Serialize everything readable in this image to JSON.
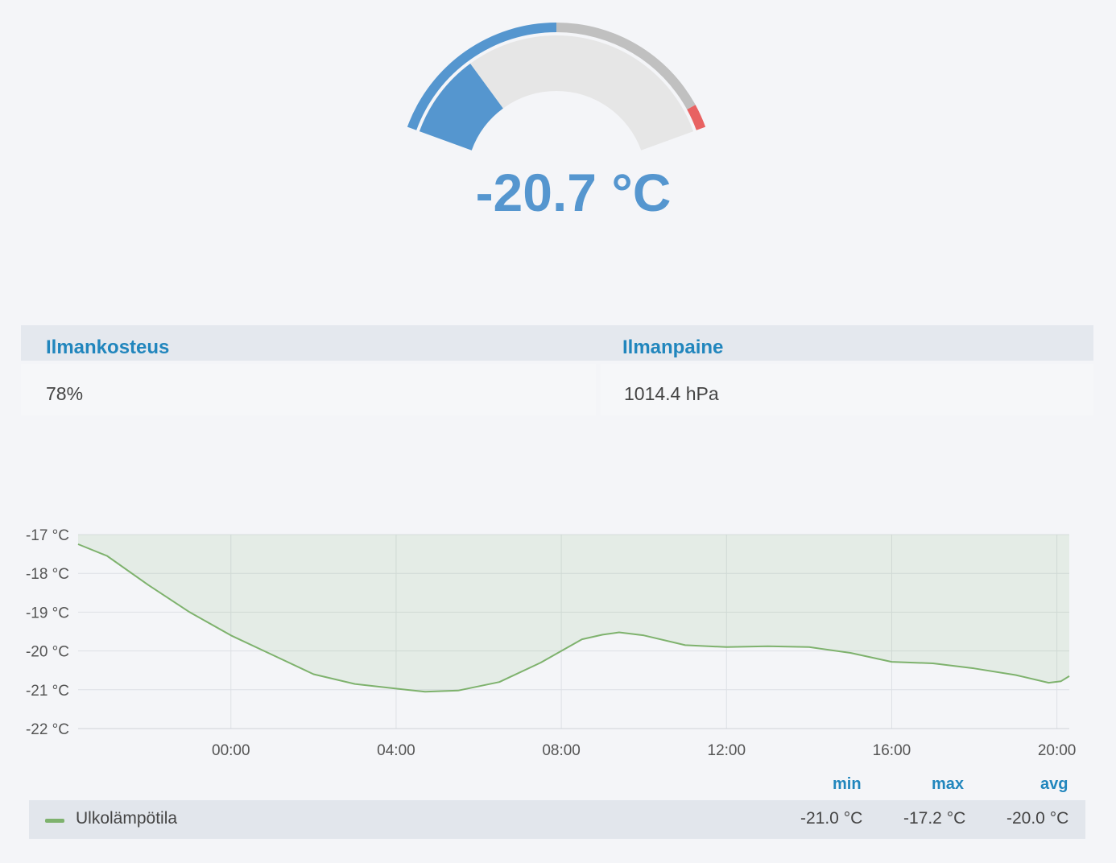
{
  "gauge": {
    "value_text": "-20.7 °C",
    "value": -20.7,
    "min": -40,
    "max": 40,
    "thresholds": [
      {
        "to": 0,
        "color": "#5596cf"
      },
      {
        "to": 35,
        "color": "#c0c0c0"
      },
      {
        "to": 40,
        "color": "#e86262"
      }
    ],
    "value_color": "#5596cf",
    "track_color": "#e6e6e6"
  },
  "stats": {
    "humidity": {
      "label": "Ilmankosteus",
      "value": "78%"
    },
    "pressure": {
      "label": "Ilmanpaine",
      "value": "1014.4 hPa"
    }
  },
  "chart_data": {
    "type": "area",
    "x_ticks": [
      "00:00",
      "04:00",
      "08:00",
      "12:00",
      "16:00",
      "20:00"
    ],
    "y_ticks": [
      "-17 °C",
      "-18 °C",
      "-19 °C",
      "-20 °C",
      "-21 °C",
      "-22 °C"
    ],
    "ylim": [
      -22,
      -17
    ],
    "x_unit": "hours since 00:00",
    "xlim": [
      -3.7,
      20.3
    ],
    "grid": true,
    "series": [
      {
        "name": "Ulkolämpötila",
        "color": "#7eb26d",
        "x": [
          -3.7,
          -3.0,
          -2.0,
          -1.0,
          0.0,
          1.0,
          2.0,
          3.0,
          4.0,
          4.7,
          5.5,
          6.5,
          7.5,
          8.0,
          8.5,
          9.0,
          9.4,
          10.0,
          11.0,
          12.0,
          13.0,
          14.0,
          15.0,
          16.0,
          17.0,
          18.0,
          19.0,
          19.8,
          20.1,
          20.3
        ],
        "values": [
          -17.25,
          -17.55,
          -18.3,
          -19.0,
          -19.6,
          -20.1,
          -20.6,
          -20.85,
          -20.97,
          -21.05,
          -21.02,
          -20.8,
          -20.3,
          -20.0,
          -19.7,
          -19.58,
          -19.52,
          -19.6,
          -19.85,
          -19.9,
          -19.88,
          -19.9,
          -20.05,
          -20.28,
          -20.32,
          -20.45,
          -20.62,
          -20.82,
          -20.78,
          -20.65
        ]
      }
    ]
  },
  "legend": {
    "headers": {
      "min": "min",
      "max": "max",
      "avg": "avg"
    },
    "series_name": "Ulkolämpötila",
    "min": "-21.0 °C",
    "max": "-17.2 °C",
    "avg": "-20.0 °C"
  }
}
